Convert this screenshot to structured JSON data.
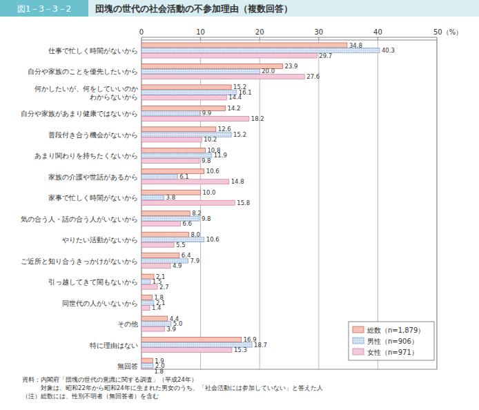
{
  "chart_data": {
    "type": "bar",
    "orientation": "horizontal",
    "figure_label": "図1－3－3－2",
    "title": "団塊の世代の社会活動の不参加理由（複数回答）",
    "categories": [
      "仕事で忙しく時間がないから",
      "自分や家族のことを優先したいから",
      "何かしたいが、何をしていいのか\nわからないから",
      "自分や家族があまり健康ではないから",
      "普段付き合う機会がないから",
      "あまり関わりを持ちたくないから",
      "家族の介護や世話があるから",
      "家事で忙しく時間がないから",
      "気の合う人・話の合う人がいないから",
      "やりたい活動がないから",
      "ご近所と知り合うきっかけがないから",
      "引っ越してきて間もないから",
      "同世代の人がいないから",
      "その他",
      "特に理由はない",
      "無回答"
    ],
    "series": [
      {
        "name": "総数（n=1,879）",
        "color": "#f5c4b4",
        "values": [
          34.8,
          23.9,
          15.2,
          14.2,
          12.6,
          10.8,
          10.6,
          10.0,
          8.2,
          8.0,
          6.4,
          2.1,
          1.8,
          4.4,
          16.9,
          1.9
        ],
        "value_labels": [
          "34.8",
          "23.9",
          "15.2",
          "14.2",
          "12.6",
          "10.8",
          "10.6",
          "10.0",
          "8.2",
          "8.0",
          "6.4",
          "2.1",
          "1.8",
          "4.4",
          "16.9",
          "1.9"
        ]
      },
      {
        "name": "男性（n=906）",
        "color": "#d9e6f5",
        "values": [
          40.3,
          20.0,
          16.1,
          9.9,
          15.2,
          11.9,
          6.1,
          3.8,
          9.8,
          10.6,
          7.9,
          1.5,
          2.1,
          5.0,
          18.7,
          2.0
        ],
        "value_labels": [
          "40.3",
          "20.0",
          "16.1",
          "9.9",
          "15.2",
          "11.9",
          "6.1",
          "3.8",
          "9.8",
          "10.6",
          "7.9",
          "1.5",
          "2.1",
          "5.0",
          "18.7",
          "2.0"
        ]
      },
      {
        "name": "女性（n=971）",
        "color": "#f3c9da",
        "values": [
          29.7,
          27.6,
          14.4,
          18.2,
          10.2,
          9.8,
          14.8,
          15.8,
          6.6,
          5.5,
          4.9,
          2.7,
          1.4,
          3.9,
          15.3,
          1.8
        ],
        "value_labels": [
          "29.7",
          "27.6",
          "14.4",
          "18.2",
          "10.2",
          "9.8",
          "14.8",
          "15.8",
          "6.6",
          "5.5",
          "4.9",
          "2.7",
          "1.4",
          "3.9",
          "15.3",
          "1.8"
        ]
      }
    ],
    "xlim": [
      0,
      50
    ],
    "xticks": [
      0,
      10,
      20,
      30,
      40,
      {
        "value": 50,
        "label": "50（%）"
      }
    ],
    "grid": true,
    "data_labels": true,
    "legend": "lower right",
    "notes": [
      "資料：内閣府「団塊の世代の意識に関する調査」（平成24年）",
      "　　　対象は、昭和22年から昭和24年に生まれた男女のうち、「社会活動には参加していない」と答えた人",
      "（注）総数には、性別不明者（無回答者）を含む"
    ]
  }
}
